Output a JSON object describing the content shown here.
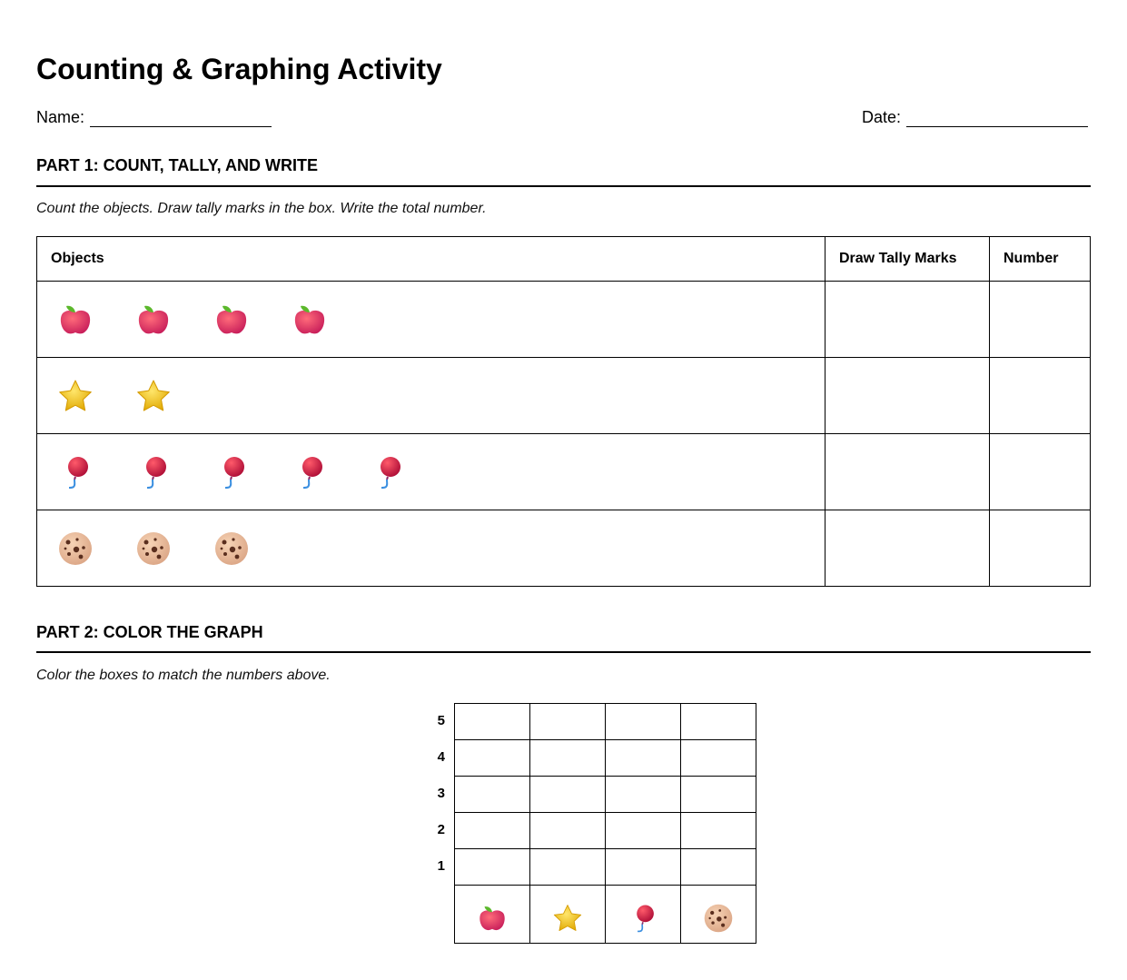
{
  "title": "Counting & Graphing Activity",
  "name_label": "Name:",
  "date_label": "Date:",
  "part1": {
    "heading": "PART 1: COUNT, TALLY, AND WRITE",
    "instruction": "Count the objects. Draw tally marks in the box. Write the total number.",
    "columns": [
      "Objects",
      "Draw Tally Marks",
      "Number"
    ],
    "rows": [
      {
        "icon": "apple-icon",
        "count": 4
      },
      {
        "icon": "star-icon",
        "count": 2
      },
      {
        "icon": "balloon-icon",
        "count": 5
      },
      {
        "icon": "cookie-icon",
        "count": 3
      }
    ]
  },
  "part2": {
    "heading": "PART 2: COLOR THE GRAPH",
    "instruction": "Color the boxes to match the numbers above.",
    "y_labels": [
      "5",
      "4",
      "3",
      "2",
      "1"
    ],
    "categories": [
      "apple-icon",
      "star-icon",
      "balloon-icon",
      "cookie-icon"
    ]
  }
}
